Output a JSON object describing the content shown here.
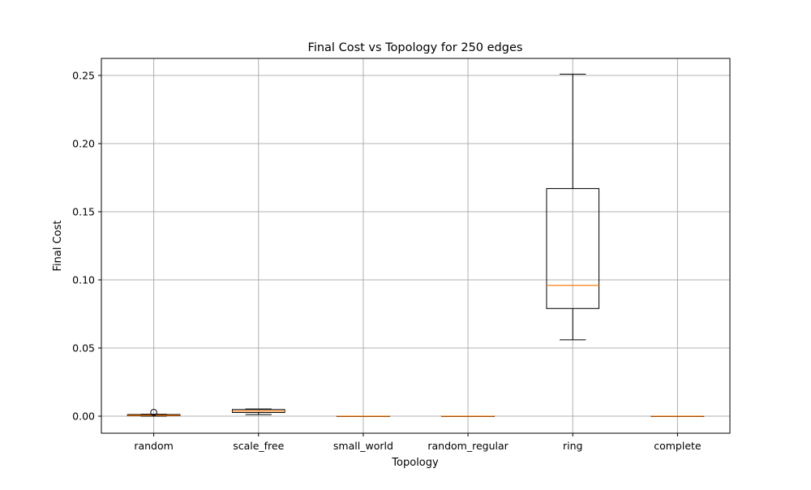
{
  "chart_data": {
    "type": "box",
    "title": "Final Cost vs Topology for 250 edges",
    "xlabel": "Topology",
    "ylabel": "Final Cost",
    "ylim": [
      -0.0125,
      0.2625
    ],
    "yticks": [
      0.0,
      0.05,
      0.1,
      0.15,
      0.2,
      0.25
    ],
    "ytick_labels": [
      "0.00",
      "0.05",
      "0.10",
      "0.15",
      "0.20",
      "0.25"
    ],
    "grid": true,
    "categories": [
      "random",
      "scale_free",
      "small_world",
      "random_regular",
      "ring",
      "complete"
    ],
    "boxes": [
      {
        "name": "random",
        "whisker_low": 0.0,
        "q1": 0.0003,
        "median": 0.0006,
        "q3": 0.0012,
        "whisker_high": 0.0014,
        "outliers": [
          0.0028
        ]
      },
      {
        "name": "scale_free",
        "whisker_low": 0.0012,
        "q1": 0.0027,
        "median": 0.0038,
        "q3": 0.0049,
        "whisker_high": 0.0053,
        "outliers": []
      },
      {
        "name": "small_world",
        "whisker_low": 0.0,
        "q1": 0.0,
        "median": 0.0,
        "q3": 0.0,
        "whisker_high": 0.0,
        "outliers": []
      },
      {
        "name": "random_regular",
        "whisker_low": 0.0,
        "q1": 0.0,
        "median": 0.0,
        "q3": 0.0,
        "whisker_high": 0.0,
        "outliers": []
      },
      {
        "name": "ring",
        "whisker_low": 0.056,
        "q1": 0.079,
        "median": 0.096,
        "q3": 0.167,
        "whisker_high": 0.251,
        "outliers": []
      },
      {
        "name": "complete",
        "whisker_low": 0.0,
        "q1": 0.0,
        "median": 0.0,
        "q3": 0.0,
        "whisker_high": 0.0,
        "outliers": []
      }
    ],
    "colors": {
      "box": "#000000",
      "median": "#ff7f0e",
      "grid": "#b0b0b0",
      "axes": "#000000"
    }
  }
}
